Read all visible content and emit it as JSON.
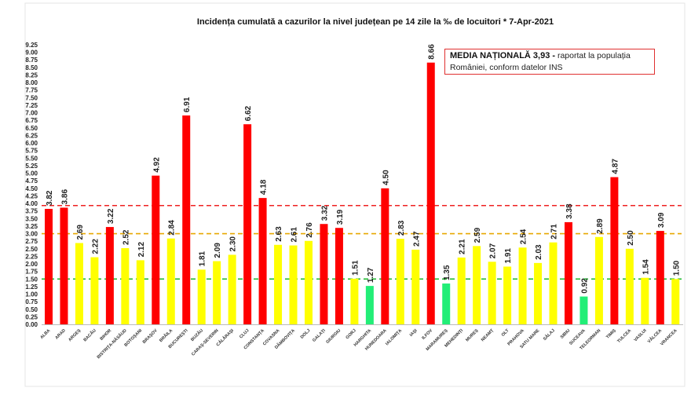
{
  "chart_data": {
    "type": "bar",
    "title": "Incidența cumulată a cazurilor la nivel județean pe 14 zile la ‰ de locuitori *   7-Apr-2021",
    "xlabel": "",
    "ylabel": "",
    "ylim": [
      0,
      9.25
    ],
    "ytick_step": 0.25,
    "grid": false,
    "categories": [
      "ALBA",
      "ARAD",
      "ARGEȘ",
      "BACĂU",
      "BIHOR",
      "BISTRIȚA-NĂSĂUD",
      "BOTOȘANI",
      "BRAȘOV",
      "BRĂILA",
      "BUCUREȘTI",
      "BUZĂU",
      "CARAȘ-SEVERIN",
      "CĂLĂRAȘI",
      "CLUJ",
      "CONSTANȚA",
      "COVASNA",
      "DÂMBOVIȚA",
      "DOLJ",
      "GALAȚI",
      "GIURGIU",
      "GORJ",
      "HARGHITA",
      "HUNEDOARA",
      "IALOMIȚA",
      "IAȘI",
      "ILFOV",
      "MARAMUREȘ",
      "MEHEDINȚI",
      "MUREȘ",
      "NEAMȚ",
      "OLT",
      "PRAHOVA",
      "SATU MARE",
      "SĂLAJ",
      "SIBIU",
      "SUCEAVA",
      "TELEORMAN",
      "TIMIȘ",
      "TULCEA",
      "VASLUI",
      "VÂLCEA",
      "VRANCEA"
    ],
    "values": [
      3.82,
      3.86,
      2.69,
      2.22,
      3.22,
      2.52,
      2.12,
      4.92,
      2.84,
      6.91,
      1.81,
      2.09,
      2.3,
      6.62,
      4.18,
      2.63,
      2.61,
      2.76,
      3.32,
      3.19,
      1.51,
      1.27,
      4.5,
      2.83,
      2.47,
      8.66,
      1.35,
      2.21,
      2.59,
      2.07,
      1.91,
      2.54,
      2.03,
      2.71,
      3.38,
      0.92,
      2.89,
      4.87,
      2.5,
      1.54,
      3.09,
      1.5
    ],
    "color_thresholds": {
      "red_above": 3.0,
      "green_below": 1.5
    },
    "colors": {
      "high": "#ff0000",
      "mid": "#ffff00",
      "low": "#22ee77"
    },
    "reference_lines": [
      {
        "value": 3.93,
        "color": "#ee2222",
        "style": "dashed"
      },
      {
        "value": 3.0,
        "color": "#e8a800",
        "style": "dashed"
      },
      {
        "value": 1.5,
        "color": "#22bb33",
        "style": "dashed"
      }
    ]
  },
  "legend": {
    "bold": "MEDIA NAȚIONALĂ  3,93 -",
    "text": " raportat la populația României, conform datelor INS"
  }
}
